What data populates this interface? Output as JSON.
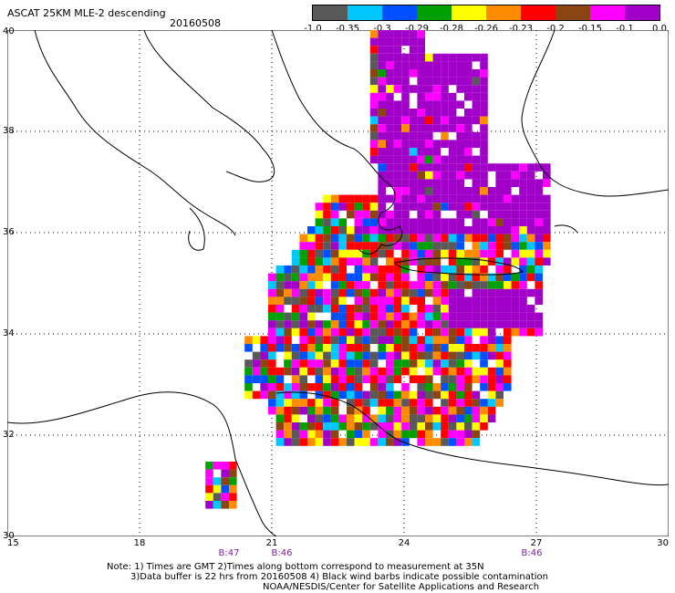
{
  "header": {
    "title": "ASCAT 25KM MLE-2 descending",
    "date": "20160508"
  },
  "colorbar": {
    "colors": [
      "#595959",
      "#00c8ff",
      "#0050ff",
      "#00a000",
      "#ffff00",
      "#ff8c00",
      "#ff0000",
      "#8b4513",
      "#ff00ff",
      "#a000c8"
    ],
    "ticks": [
      "-1.0",
      "-0.35",
      "-0.3",
      "-0.29",
      "-0.28",
      "-0.26",
      "-0.23",
      "-0.2",
      "-0.15",
      "-0.1",
      "0.0"
    ]
  },
  "axes": {
    "lat_labels": [
      "40",
      "38",
      "36",
      "34",
      "32",
      "30"
    ],
    "lon_labels": [
      "15",
      "18",
      "21",
      "24",
      "27",
      "30"
    ]
  },
  "time_labels": [
    "B:47",
    "B:46",
    "B:46"
  ],
  "footer": {
    "line1": "Note: 1) Times are GMT 2)Times along bottom correspond to measurement at 35N",
    "line2": "3)Data buffer is 22 hrs from 20160508 4) Black wind barbs indicate possible contamination",
    "line3": "NOAA/NESDIS/Center for Satellite Applications and Research"
  }
}
